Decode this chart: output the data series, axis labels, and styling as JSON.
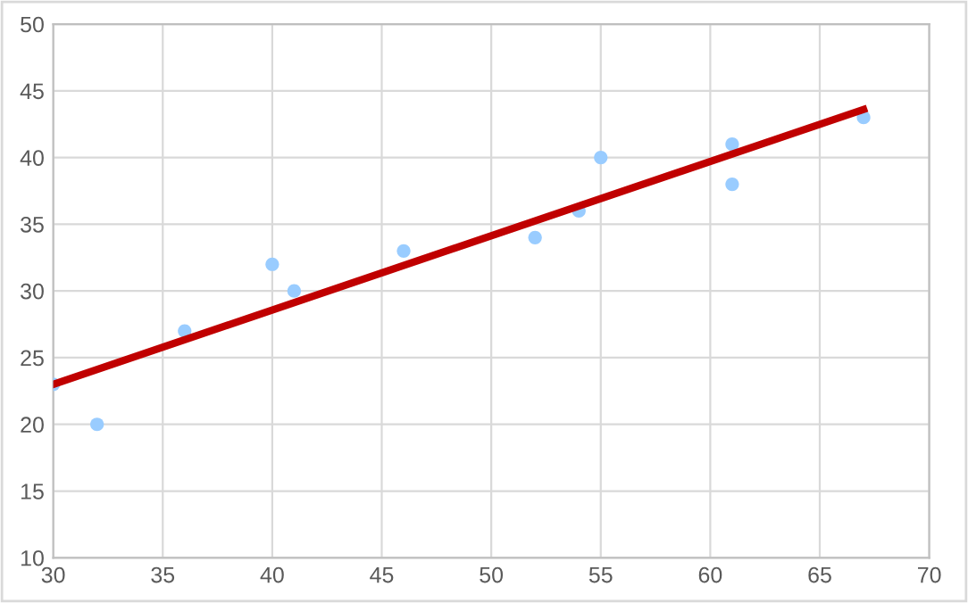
{
  "chart_data": {
    "type": "scatter",
    "xlim": [
      30,
      70
    ],
    "xticks": [
      30,
      35,
      40,
      45,
      50,
      55,
      60,
      65,
      70
    ],
    "ylim": [
      10,
      50
    ],
    "yticks": [
      10,
      15,
      20,
      25,
      30,
      35,
      40,
      45,
      50
    ],
    "grid": true,
    "series": [
      {
        "marker": "circle",
        "color": "#99ccff",
        "x": [
          30,
          32,
          36,
          40,
          41,
          46,
          52,
          54,
          55,
          61,
          61,
          67
        ],
        "values": [
          23,
          20,
          27,
          32,
          30,
          33,
          34,
          36,
          40,
          41,
          38,
          43
        ]
      },
      {
        "type": "line",
        "marker": "none",
        "color": "#c00000",
        "x": [
          30,
          67
        ],
        "values": [
          23,
          43.6
        ]
      }
    ]
  }
}
